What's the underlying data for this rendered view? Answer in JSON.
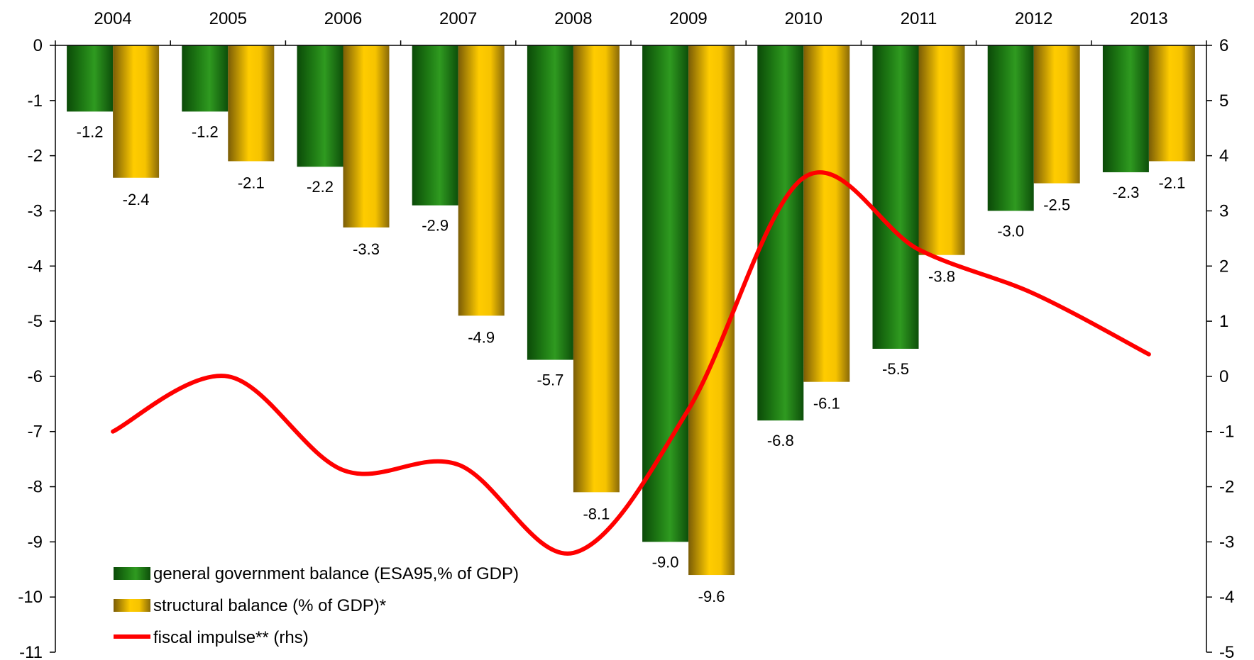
{
  "chart_data": {
    "type": "bar",
    "categories": [
      "2004",
      "2005",
      "2006",
      "2007",
      "2008",
      "2009",
      "2010",
      "2011",
      "2012",
      "2013"
    ],
    "series": [
      {
        "name": "general government balance (ESA95,% of GDP)",
        "kind": "bar",
        "axis": "left",
        "values": [
          -1.2,
          -1.2,
          -2.2,
          -2.9,
          -5.7,
          -9.0,
          -6.8,
          -5.5,
          -3.0,
          -2.3
        ],
        "labels": [
          "-1.2",
          "-1.2",
          "-2.2",
          "-2.9",
          "-5.7",
          "-9.0",
          "-6.8",
          "-5.5",
          "-3.0",
          "-2.3"
        ],
        "color": "#1e7a14"
      },
      {
        "name": "structural balance (% of GDP)*",
        "kind": "bar",
        "axis": "left",
        "values": [
          -2.4,
          -2.1,
          -3.3,
          -4.9,
          -8.1,
          -9.6,
          -6.1,
          -3.8,
          -2.5,
          -2.1
        ],
        "labels": [
          "-2.4",
          "-2.1",
          "-3.3",
          "-4.9",
          "-8.1",
          "-9.6",
          "-6.1",
          "-3.8",
          "-2.5",
          "-2.1"
        ],
        "color": "#f2c200"
      },
      {
        "name": "fiscal impulse** (rhs)",
        "kind": "line",
        "axis": "right",
        "values": [
          -1.0,
          0.0,
          -1.7,
          -1.6,
          -3.2,
          -0.6,
          3.6,
          2.3,
          1.5,
          0.4
        ],
        "color": "#ff0000"
      }
    ],
    "ylim": [
      -11,
      0
    ],
    "y2lim": [
      -5,
      6
    ],
    "yticks": [
      "0",
      "-1",
      "-2",
      "-3",
      "-4",
      "-5",
      "-6",
      "-7",
      "-8",
      "-9",
      "-10",
      "-11"
    ],
    "y2ticks": [
      "6",
      "5",
      "4",
      "3",
      "2",
      "1",
      "0",
      "-1",
      "-2",
      "-3",
      "-4",
      "-5"
    ],
    "xaxis_position": "top",
    "legend": "bottom-left",
    "grid": false
  }
}
